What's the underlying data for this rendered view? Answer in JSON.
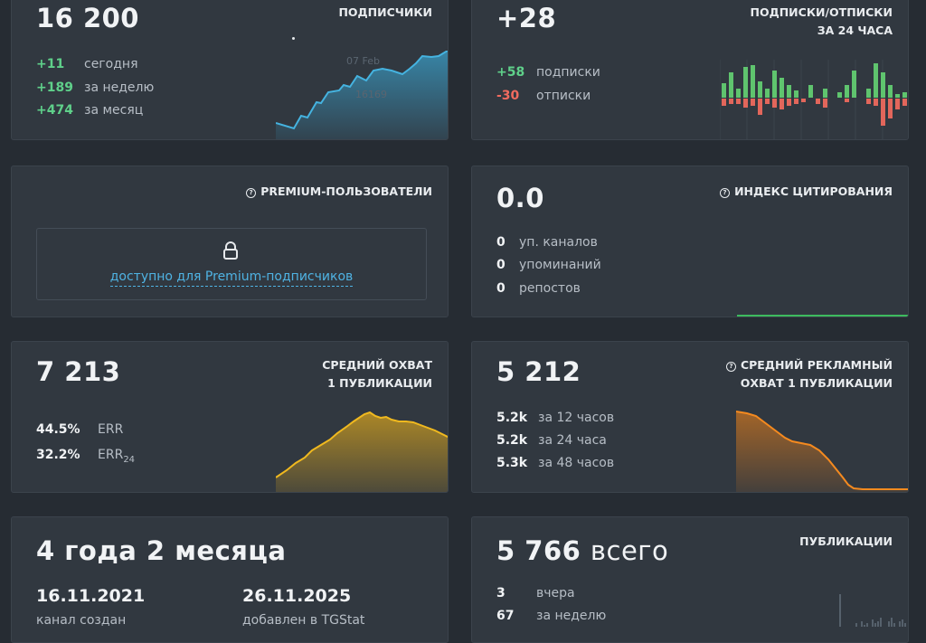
{
  "subscribers": {
    "total": "16 200",
    "caption": "ПОДПИСЧИКИ",
    "rows": [
      {
        "value": "+11",
        "label": "сегодня"
      },
      {
        "value": "+189",
        "label": "за неделю"
      },
      {
        "value": "+474",
        "label": "за месяц"
      }
    ],
    "chart_tooltip_date": "07 Feb",
    "chart_tooltip_value": "16169",
    "chart_color": "#3a9fc9"
  },
  "subs_unsubs": {
    "total": "+28",
    "caption_line1": "ПОДПИСКИ/ОТПИСКИ",
    "caption_line2": "ЗА 24 ЧАСА",
    "rows": [
      {
        "value": "+58",
        "label": "подписки"
      },
      {
        "value": "-30",
        "label": "отписки"
      }
    ],
    "up_color": "#5fc46e",
    "down_color": "#e2665b"
  },
  "premium": {
    "caption": "PREMIUM-ПОЛЬЗОВАТЕЛИ",
    "link": "доступно для Premium-подписчиков",
    "icon": "lock-icon"
  },
  "citation": {
    "total": "0.0",
    "caption": "ИНДЕКС ЦИТИРОВАНИЯ",
    "rows": [
      {
        "value": "0",
        "label": "уп. каналов"
      },
      {
        "value": "0",
        "label": "упоминаний"
      },
      {
        "value": "0",
        "label": "репостов"
      }
    ]
  },
  "reach": {
    "total": "7 213",
    "caption_line1": "СРЕДНИЙ ОХВАТ",
    "caption_line2": "1 ПУБЛИКАЦИИ",
    "rows": [
      {
        "value": "44.5%",
        "label": "ERR",
        "sub": ""
      },
      {
        "value": "32.2%",
        "label": "ERR",
        "sub": "24"
      }
    ],
    "chart_color": "#e0a91c"
  },
  "ad_reach": {
    "total": "5 212",
    "caption_line1": "СРЕДНИЙ РЕКЛАМНЫЙ",
    "caption_line2": "ОХВАТ 1 ПУБЛИКАЦИИ",
    "rows": [
      {
        "value": "5.2k",
        "label": "за 12 часов"
      },
      {
        "value": "5.2k",
        "label": "за 24 часа"
      },
      {
        "value": "5.3k",
        "label": "за 48 часов"
      }
    ],
    "chart_color": "#f08a1f"
  },
  "age": {
    "total": "4 года 2 месяца",
    "created_date": "16.11.2021",
    "created_label": "канал создан",
    "added_date": "26.11.2025",
    "added_label": "добавлен в TGStat"
  },
  "posts": {
    "total": "5 766",
    "total_suffix": "всего",
    "caption": "ПУБЛИКАЦИИ",
    "rows": [
      {
        "value": "3",
        "label": "вчера"
      },
      {
        "value": "67",
        "label": "за неделю"
      }
    ]
  }
}
